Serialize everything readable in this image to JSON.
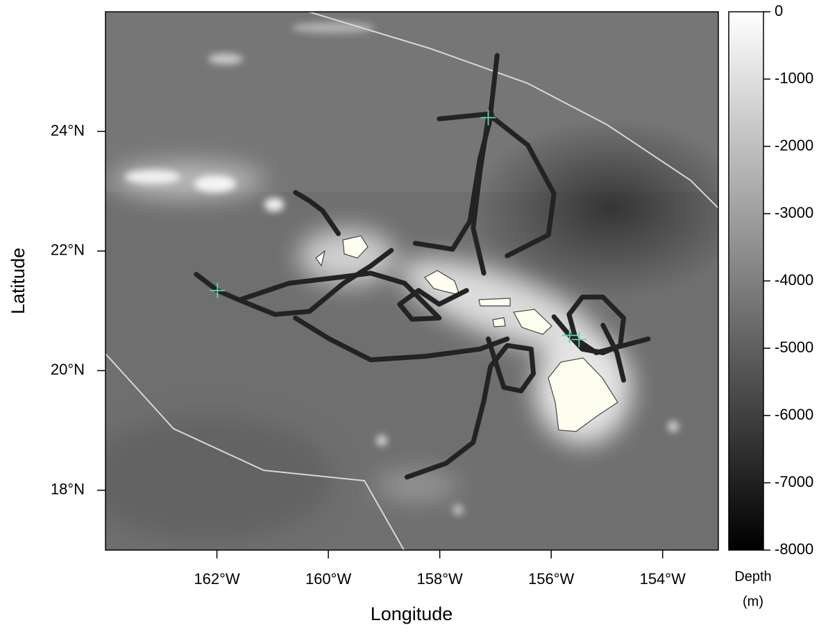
{
  "chart_data": {
    "type": "map",
    "xlabel": "Longitude",
    "ylabel": "Latitude",
    "xlim": [
      -164,
      -153
    ],
    "ylim": [
      17,
      26
    ],
    "xticks": [
      {
        "value": -162,
        "label": "162°W"
      },
      {
        "value": -160,
        "label": "160°W"
      },
      {
        "value": -158,
        "label": "158°W"
      },
      {
        "value": -156,
        "label": "156°W"
      },
      {
        "value": -154,
        "label": "154°W"
      }
    ],
    "yticks": [
      {
        "value": 18,
        "label": "18°N"
      },
      {
        "value": 20,
        "label": "20°N"
      },
      {
        "value": 22,
        "label": "22°N"
      },
      {
        "value": 24,
        "label": "24°N"
      }
    ],
    "colorbar": {
      "title": "Depth",
      "units": "(m)",
      "lim": [
        -8000,
        0
      ],
      "ticks": [
        0,
        -1000,
        -2000,
        -3000,
        -4000,
        -5000,
        -6000,
        -7000,
        -8000
      ],
      "colors": [
        "#000000",
        "#ffffff"
      ]
    },
    "tracks": {
      "color": "#232323",
      "series": [
        {
          "x": [
            -156.97,
            -157.09,
            -157.13,
            -157.28,
            -157.4,
            -157.21
          ],
          "y": [
            25.27,
            24.29,
            24.23,
            23.31,
            22.38,
            21.63
          ]
        },
        {
          "x": [
            -158.01,
            -157.13,
            -156.42,
            -155.95,
            -156.05,
            -156.79
          ],
          "y": [
            24.21,
            24.29,
            23.77,
            22.96,
            22.27,
            21.92
          ]
        },
        {
          "x": [
            -158.44,
            -157.77,
            -157.46,
            -157.28,
            -157.07
          ],
          "y": [
            22.13,
            22.03,
            22.5,
            23.54,
            24.29
          ]
        },
        {
          "x": [
            -162.37,
            -161.99,
            -161.57,
            -160.96,
            -160.34,
            -159.73,
            -159.24,
            -158.87
          ],
          "y": [
            21.61,
            21.34,
            21.17,
            20.94,
            20.99,
            21.46,
            21.75,
            22.01
          ]
        },
        {
          "x": [
            -161.57,
            -160.71,
            -159.73,
            -159.24,
            -158.63,
            -158.26,
            -158.01,
            -158.5,
            -158.72,
            -158.38,
            -158.01,
            -157.52
          ],
          "y": [
            21.19,
            21.46,
            21.57,
            21.63,
            21.46,
            21.11,
            20.88,
            20.86,
            21.11,
            21.34,
            21.11,
            21.34
          ]
        },
        {
          "x": [
            -160.59,
            -159.98,
            -159.24,
            -158.26,
            -157.28,
            -156.79
          ],
          "y": [
            20.88,
            20.53,
            20.18,
            20.24,
            20.36,
            20.53
          ]
        },
        {
          "x": [
            -160.59,
            -160.34,
            -160.1,
            -159.82
          ],
          "y": [
            22.98,
            22.84,
            22.67,
            22.29
          ]
        },
        {
          "x": [
            -158.59,
            -157.89,
            -157.4,
            -157.21,
            -157.09,
            -156.79,
            -156.36,
            -156.32,
            -156.54,
            -156.85,
            -157.01,
            -157.13
          ],
          "y": [
            18.22,
            18.45,
            18.8,
            19.49,
            20.07,
            20.42,
            20.36,
            19.95,
            19.66,
            19.72,
            20.18,
            20.53
          ]
        },
        {
          "x": [
            -155.95,
            -155.67,
            -155.44,
            -155.07,
            -154.76,
            -154.7,
            -155.07,
            -155.44,
            -155.68,
            -155.56,
            -155.19,
            -154.26
          ],
          "y": [
            20.9,
            20.59,
            20.36,
            20.3,
            20.42,
            20.88,
            21.23,
            21.23,
            20.94,
            20.53,
            20.3,
            20.53
          ]
        },
        {
          "x": [
            -155.07,
            -154.82,
            -154.7
          ],
          "y": [
            20.76,
            20.3,
            19.84
          ]
        }
      ]
    },
    "deployments": {
      "color": "#5fd3b0",
      "x": [
        -157.13,
        -161.99,
        -155.67,
        -155.5
      ],
      "y": [
        24.23,
        21.34,
        20.59,
        20.52
      ]
    }
  }
}
